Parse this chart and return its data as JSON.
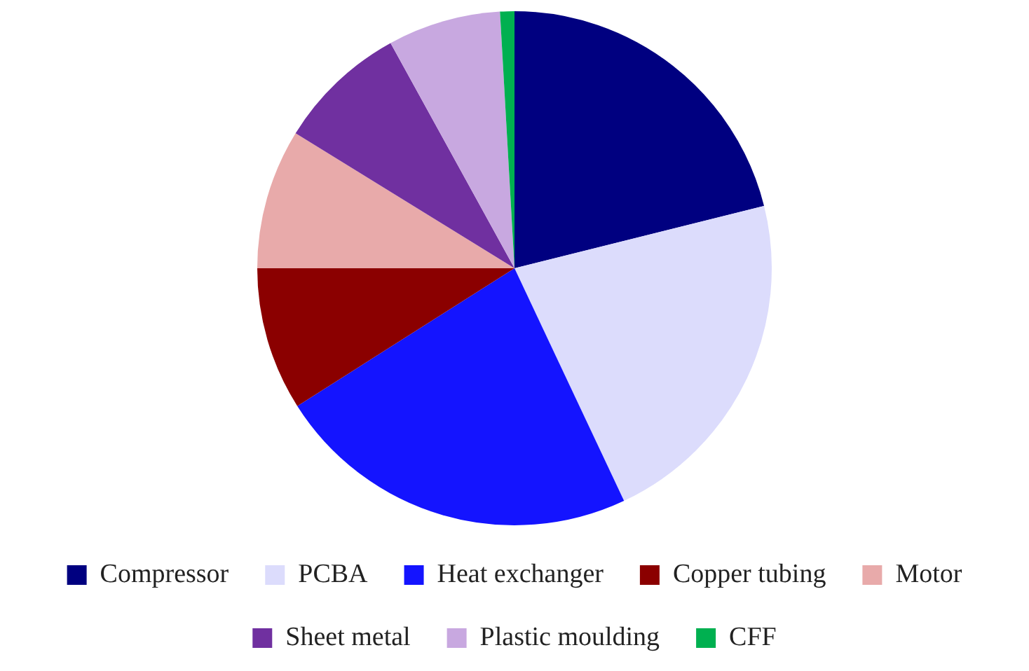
{
  "chart_data": {
    "type": "pie",
    "categories": [
      "Compressor",
      "PCBA",
      "Heat exchanger",
      "Copper tubing",
      "Motor",
      "Sheet metal",
      "Plastic moulding",
      "CFF"
    ],
    "values": [
      21.1,
      21.9,
      23.0,
      9.0,
      8.8,
      8.2,
      7.1,
      0.9
    ],
    "colors": [
      "#000080",
      "#dcdcfc",
      "#1414ff",
      "#8b0000",
      "#e8aaaa",
      "#7030a0",
      "#c8a8e0",
      "#00b050"
    ],
    "legend": "bottom"
  }
}
